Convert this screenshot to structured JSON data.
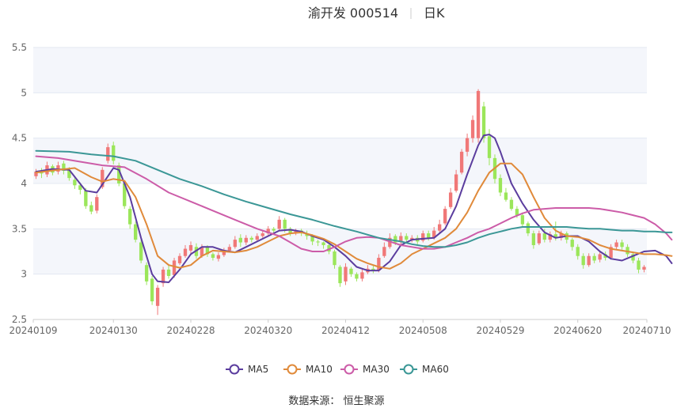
{
  "title": {
    "name": "渝开发 000514",
    "period": "日K"
  },
  "source": "数据来源： 恒生聚源",
  "colors": {
    "up": "#f07878",
    "down": "#9be65a",
    "band": "#f4f6fb",
    "grid": "#e3e8f2",
    "axis_text": "#666666",
    "title_text": "#333333"
  },
  "chart_data": {
    "type": "candlestick",
    "ylim": [
      2.5,
      5.5
    ],
    "y_ticks": [
      "2.5",
      "3",
      "3.5",
      "4",
      "4.5",
      "5",
      "5.5"
    ],
    "x_ticks": [
      {
        "label": "20240109",
        "index": 0
      },
      {
        "label": "20240130",
        "index": 14
      },
      {
        "label": "20240228",
        "index": 28
      },
      {
        "label": "20240320",
        "index": 42
      },
      {
        "label": "20240412",
        "index": 56
      },
      {
        "label": "20240508",
        "index": 70
      },
      {
        "label": "20240529",
        "index": 84
      },
      {
        "label": "20240620",
        "index": 98
      },
      {
        "label": "20240710",
        "index": 112
      }
    ],
    "legend": [
      "MA5",
      "MA10",
      "MA30",
      "MA60"
    ],
    "ma_colors": [
      "#5b3d9e",
      "#e08a3a",
      "#cc5ca8",
      "#3b9796"
    ],
    "ohlc": [
      [
        4.08,
        4.13,
        4.05,
        4.16
      ],
      [
        4.12,
        4.11,
        4.06,
        4.17
      ],
      [
        4.1,
        4.2,
        4.07,
        4.24
      ],
      [
        4.19,
        4.12,
        4.09,
        4.21
      ],
      [
        4.13,
        4.2,
        4.1,
        4.24
      ],
      [
        4.22,
        4.14,
        4.1,
        4.25
      ],
      [
        4.15,
        4.06,
        4.03,
        4.18
      ],
      [
        4.04,
        3.98,
        3.94,
        4.07
      ],
      [
        3.98,
        3.93,
        3.88,
        4.01
      ],
      [
        3.92,
        3.75,
        3.72,
        3.95
      ],
      [
        3.76,
        3.69,
        3.66,
        3.8
      ],
      [
        3.7,
        3.85,
        3.67,
        3.88
      ],
      [
        3.96,
        4.15,
        3.94,
        4.18
      ],
      [
        4.25,
        4.4,
        4.22,
        4.44
      ],
      [
        4.42,
        4.25,
        4.21,
        4.46
      ],
      [
        4.2,
        4.0,
        3.97,
        4.23
      ],
      [
        4.0,
        3.75,
        3.72,
        4.02
      ],
      [
        3.72,
        3.55,
        3.5,
        3.75
      ],
      [
        3.55,
        3.38,
        3.35,
        3.58
      ],
      [
        3.35,
        3.15,
        3.12,
        3.38
      ],
      [
        3.1,
        2.92,
        2.88,
        3.13
      ],
      [
        2.95,
        2.7,
        2.66,
        2.98
      ],
      [
        2.65,
        2.85,
        2.55,
        2.88
      ],
      [
        2.9,
        3.05,
        2.86,
        3.08
      ],
      [
        3.05,
        2.98,
        2.95,
        3.1
      ],
      [
        2.99,
        3.15,
        2.96,
        3.18
      ],
      [
        3.12,
        3.2,
        3.1,
        3.23
      ],
      [
        3.2,
        3.28,
        3.18,
        3.32
      ],
      [
        3.26,
        3.32,
        3.23,
        3.36
      ],
      [
        3.3,
        3.2,
        3.17,
        3.34
      ],
      [
        3.2,
        3.3,
        3.18,
        3.33
      ],
      [
        3.3,
        3.22,
        3.19,
        3.32
      ],
      [
        3.22,
        3.18,
        3.15,
        3.24
      ],
      [
        3.17,
        3.21,
        3.14,
        3.24
      ],
      [
        3.21,
        3.26,
        3.19,
        3.29
      ],
      [
        3.26,
        3.3,
        3.24,
        3.33
      ],
      [
        3.3,
        3.38,
        3.28,
        3.42
      ],
      [
        3.4,
        3.35,
        3.3,
        3.44
      ],
      [
        3.35,
        3.4,
        3.32,
        3.43
      ],
      [
        3.4,
        3.38,
        3.35,
        3.42
      ],
      [
        3.38,
        3.42,
        3.36,
        3.45
      ],
      [
        3.42,
        3.45,
        3.4,
        3.48
      ],
      [
        3.45,
        3.5,
        3.43,
        3.53
      ],
      [
        3.5,
        3.48,
        3.45,
        3.52
      ],
      [
        3.5,
        3.6,
        3.48,
        3.64
      ],
      [
        3.6,
        3.5,
        3.46,
        3.62
      ],
      [
        3.5,
        3.45,
        3.42,
        3.52
      ],
      [
        3.46,
        3.48,
        3.43,
        3.5
      ],
      [
        3.48,
        3.45,
        3.42,
        3.5
      ],
      [
        3.45,
        3.42,
        3.38,
        3.48
      ],
      [
        3.42,
        3.36,
        3.32,
        3.44
      ],
      [
        3.36,
        3.35,
        3.31,
        3.38
      ],
      [
        3.35,
        3.32,
        3.28,
        3.36
      ],
      [
        3.32,
        3.25,
        3.22,
        3.34
      ],
      [
        3.25,
        3.1,
        3.06,
        3.27
      ],
      [
        3.08,
        2.9,
        2.86,
        3.1
      ],
      [
        2.92,
        3.08,
        2.88,
        3.12
      ],
      [
        3.06,
        3.0,
        2.97,
        3.08
      ],
      [
        3.0,
        2.95,
        2.92,
        3.02
      ],
      [
        2.95,
        3.02,
        2.92,
        3.05
      ],
      [
        3.02,
        3.06,
        3.0,
        3.1
      ],
      [
        3.06,
        3.04,
        3.01,
        3.1
      ],
      [
        3.04,
        3.18,
        3.02,
        3.22
      ],
      [
        3.2,
        3.3,
        3.18,
        3.35
      ],
      [
        3.3,
        3.4,
        3.28,
        3.45
      ],
      [
        3.42,
        3.35,
        3.32,
        3.44
      ],
      [
        3.36,
        3.42,
        3.33,
        3.46
      ],
      [
        3.42,
        3.38,
        3.35,
        3.45
      ],
      [
        3.38,
        3.4,
        3.35,
        3.43
      ],
      [
        3.4,
        3.36,
        3.33,
        3.43
      ],
      [
        3.37,
        3.45,
        3.35,
        3.48
      ],
      [
        3.45,
        3.4,
        3.37,
        3.48
      ],
      [
        3.4,
        3.48,
        3.38,
        3.52
      ],
      [
        3.48,
        3.55,
        3.46,
        3.6
      ],
      [
        3.56,
        3.72,
        3.54,
        3.75
      ],
      [
        3.74,
        3.9,
        3.72,
        3.95
      ],
      [
        3.92,
        4.1,
        3.9,
        4.15
      ],
      [
        4.12,
        4.35,
        4.1,
        4.38
      ],
      [
        4.35,
        4.5,
        4.3,
        4.55
      ],
      [
        4.5,
        4.7,
        4.45,
        4.75
      ],
      [
        4.5,
        5.02,
        4.45,
        5.04
      ],
      [
        4.85,
        4.5,
        4.45,
        4.9
      ],
      [
        4.52,
        4.28,
        4.2,
        4.6
      ],
      [
        4.28,
        4.05,
        4.0,
        4.32
      ],
      [
        4.06,
        3.9,
        3.86,
        4.1
      ],
      [
        3.9,
        3.82,
        3.8,
        3.95
      ],
      [
        3.82,
        3.72,
        3.7,
        3.85
      ],
      [
        3.72,
        3.65,
        3.62,
        3.75
      ],
      [
        3.65,
        3.55,
        3.52,
        3.68
      ],
      [
        3.56,
        3.45,
        3.42,
        3.58
      ],
      [
        3.45,
        3.32,
        3.28,
        3.48
      ],
      [
        3.34,
        3.45,
        3.32,
        3.48
      ],
      [
        3.45,
        3.38,
        3.35,
        3.5
      ],
      [
        3.38,
        3.44,
        3.35,
        3.47
      ],
      [
        3.44,
        3.4,
        3.37,
        3.58
      ],
      [
        3.4,
        3.45,
        3.37,
        3.48
      ],
      [
        3.45,
        3.38,
        3.34,
        3.47
      ],
      [
        3.38,
        3.3,
        3.26,
        3.4
      ],
      [
        3.3,
        3.2,
        3.16,
        3.33
      ],
      [
        3.2,
        3.1,
        3.06,
        3.23
      ],
      [
        3.1,
        3.2,
        3.08,
        3.23
      ],
      [
        3.2,
        3.15,
        3.12,
        3.23
      ],
      [
        3.16,
        3.22,
        3.13,
        3.25
      ],
      [
        3.22,
        3.18,
        3.15,
        3.25
      ],
      [
        3.18,
        3.3,
        3.16,
        3.33
      ],
      [
        3.3,
        3.35,
        3.27,
        3.38
      ],
      [
        3.35,
        3.3,
        3.27,
        3.38
      ],
      [
        3.3,
        3.22,
        3.19,
        3.33
      ],
      [
        3.22,
        3.15,
        3.12,
        3.25
      ],
      [
        3.15,
        3.05,
        3.01,
        3.18
      ],
      [
        3.05,
        3.08,
        3.02,
        3.1
      ]
    ],
    "ma": {
      "MA5": [
        [
          0,
          4.13
        ],
        [
          3,
          4.16
        ],
        [
          6,
          4.15
        ],
        [
          9,
          3.92
        ],
        [
          11,
          3.9
        ],
        [
          13,
          4.08
        ],
        [
          14,
          4.17
        ],
        [
          15,
          4.15
        ],
        [
          17,
          3.85
        ],
        [
          19,
          3.4
        ],
        [
          21,
          3.0
        ],
        [
          22,
          2.92
        ],
        [
          24,
          2.91
        ],
        [
          26,
          3.05
        ],
        [
          28,
          3.22
        ],
        [
          30,
          3.3
        ],
        [
          32,
          3.3
        ],
        [
          34,
          3.26
        ],
        [
          36,
          3.24
        ],
        [
          38,
          3.3
        ],
        [
          40,
          3.36
        ],
        [
          42,
          3.42
        ],
        [
          44,
          3.48
        ],
        [
          46,
          3.49
        ],
        [
          48,
          3.47
        ],
        [
          50,
          3.42
        ],
        [
          52,
          3.38
        ],
        [
          54,
          3.3
        ],
        [
          56,
          3.2
        ],
        [
          58,
          3.08
        ],
        [
          60,
          3.04
        ],
        [
          62,
          3.04
        ],
        [
          64,
          3.14
        ],
        [
          66,
          3.32
        ],
        [
          68,
          3.38
        ],
        [
          70,
          3.39
        ],
        [
          72,
          3.4
        ],
        [
          74,
          3.5
        ],
        [
          76,
          3.75
        ],
        [
          78,
          4.1
        ],
        [
          80,
          4.42
        ],
        [
          81,
          4.53
        ],
        [
          82,
          4.54
        ],
        [
          83,
          4.5
        ],
        [
          84,
          4.35
        ],
        [
          86,
          4.0
        ],
        [
          88,
          3.78
        ],
        [
          90,
          3.6
        ],
        [
          92,
          3.46
        ],
        [
          94,
          3.4
        ],
        [
          96,
          3.42
        ],
        [
          98,
          3.42
        ],
        [
          100,
          3.36
        ],
        [
          102,
          3.25
        ],
        [
          104,
          3.17
        ],
        [
          106,
          3.15
        ],
        [
          108,
          3.2
        ],
        [
          110,
          3.25
        ],
        [
          112,
          3.26
        ],
        [
          114,
          3.2
        ],
        [
          115,
          3.12
        ]
      ],
      "MA10": [
        [
          0,
          4.12
        ],
        [
          4,
          4.15
        ],
        [
          7,
          4.17
        ],
        [
          10,
          4.07
        ],
        [
          12,
          4.02
        ],
        [
          14,
          4.05
        ],
        [
          16,
          4.03
        ],
        [
          18,
          3.85
        ],
        [
          20,
          3.55
        ],
        [
          22,
          3.2
        ],
        [
          24,
          3.1
        ],
        [
          26,
          3.07
        ],
        [
          28,
          3.1
        ],
        [
          30,
          3.2
        ],
        [
          32,
          3.26
        ],
        [
          34,
          3.25
        ],
        [
          36,
          3.24
        ],
        [
          38,
          3.26
        ],
        [
          40,
          3.3
        ],
        [
          42,
          3.36
        ],
        [
          44,
          3.42
        ],
        [
          46,
          3.45
        ],
        [
          48,
          3.46
        ],
        [
          50,
          3.43
        ],
        [
          52,
          3.39
        ],
        [
          54,
          3.33
        ],
        [
          56,
          3.25
        ],
        [
          58,
          3.17
        ],
        [
          60,
          3.12
        ],
        [
          62,
          3.08
        ],
        [
          64,
          3.06
        ],
        [
          66,
          3.12
        ],
        [
          68,
          3.22
        ],
        [
          70,
          3.28
        ],
        [
          72,
          3.34
        ],
        [
          74,
          3.4
        ],
        [
          76,
          3.5
        ],
        [
          78,
          3.68
        ],
        [
          80,
          3.92
        ],
        [
          82,
          4.12
        ],
        [
          84,
          4.22
        ],
        [
          86,
          4.22
        ],
        [
          88,
          4.1
        ],
        [
          90,
          3.85
        ],
        [
          92,
          3.62
        ],
        [
          94,
          3.48
        ],
        [
          96,
          3.42
        ],
        [
          98,
          3.41
        ],
        [
          100,
          3.38
        ],
        [
          102,
          3.32
        ],
        [
          104,
          3.28
        ],
        [
          106,
          3.26
        ],
        [
          108,
          3.24
        ],
        [
          110,
          3.22
        ],
        [
          112,
          3.22
        ],
        [
          114,
          3.21
        ],
        [
          115,
          3.2
        ]
      ],
      "MA30": [
        [
          0,
          4.3
        ],
        [
          4,
          4.28
        ],
        [
          8,
          4.24
        ],
        [
          12,
          4.2
        ],
        [
          16,
          4.18
        ],
        [
          20,
          4.05
        ],
        [
          24,
          3.9
        ],
        [
          28,
          3.8
        ],
        [
          32,
          3.7
        ],
        [
          36,
          3.6
        ],
        [
          40,
          3.5
        ],
        [
          44,
          3.42
        ],
        [
          46,
          3.35
        ],
        [
          48,
          3.28
        ],
        [
          50,
          3.25
        ],
        [
          52,
          3.25
        ],
        [
          54,
          3.3
        ],
        [
          56,
          3.36
        ],
        [
          58,
          3.4
        ],
        [
          60,
          3.41
        ],
        [
          62,
          3.4
        ],
        [
          64,
          3.36
        ],
        [
          66,
          3.32
        ],
        [
          68,
          3.3
        ],
        [
          70,
          3.28
        ],
        [
          72,
          3.28
        ],
        [
          74,
          3.3
        ],
        [
          76,
          3.35
        ],
        [
          78,
          3.4
        ],
        [
          80,
          3.46
        ],
        [
          82,
          3.5
        ],
        [
          84,
          3.56
        ],
        [
          86,
          3.62
        ],
        [
          88,
          3.67
        ],
        [
          90,
          3.71
        ],
        [
          92,
          3.72
        ],
        [
          94,
          3.73
        ],
        [
          96,
          3.73
        ],
        [
          98,
          3.73
        ],
        [
          100,
          3.73
        ],
        [
          102,
          3.72
        ],
        [
          104,
          3.7
        ],
        [
          106,
          3.68
        ],
        [
          108,
          3.65
        ],
        [
          110,
          3.62
        ],
        [
          112,
          3.55
        ],
        [
          114,
          3.45
        ],
        [
          115,
          3.38
        ]
      ],
      "MA60": [
        [
          0,
          4.36
        ],
        [
          6,
          4.35
        ],
        [
          10,
          4.32
        ],
        [
          14,
          4.3
        ],
        [
          18,
          4.25
        ],
        [
          22,
          4.15
        ],
        [
          26,
          4.05
        ],
        [
          30,
          3.97
        ],
        [
          34,
          3.88
        ],
        [
          38,
          3.8
        ],
        [
          42,
          3.73
        ],
        [
          46,
          3.66
        ],
        [
          50,
          3.6
        ],
        [
          54,
          3.53
        ],
        [
          58,
          3.47
        ],
        [
          62,
          3.4
        ],
        [
          66,
          3.36
        ],
        [
          68,
          3.33
        ],
        [
          70,
          3.31
        ],
        [
          72,
          3.3
        ],
        [
          74,
          3.3
        ],
        [
          76,
          3.32
        ],
        [
          78,
          3.35
        ],
        [
          80,
          3.4
        ],
        [
          82,
          3.44
        ],
        [
          84,
          3.47
        ],
        [
          86,
          3.5
        ],
        [
          88,
          3.52
        ],
        [
          90,
          3.52
        ],
        [
          92,
          3.52
        ],
        [
          94,
          3.52
        ],
        [
          96,
          3.52
        ],
        [
          98,
          3.51
        ],
        [
          100,
          3.5
        ],
        [
          102,
          3.5
        ],
        [
          104,
          3.49
        ],
        [
          106,
          3.48
        ],
        [
          108,
          3.48
        ],
        [
          110,
          3.47
        ],
        [
          112,
          3.47
        ],
        [
          114,
          3.46
        ],
        [
          115,
          3.46
        ]
      ]
    }
  }
}
